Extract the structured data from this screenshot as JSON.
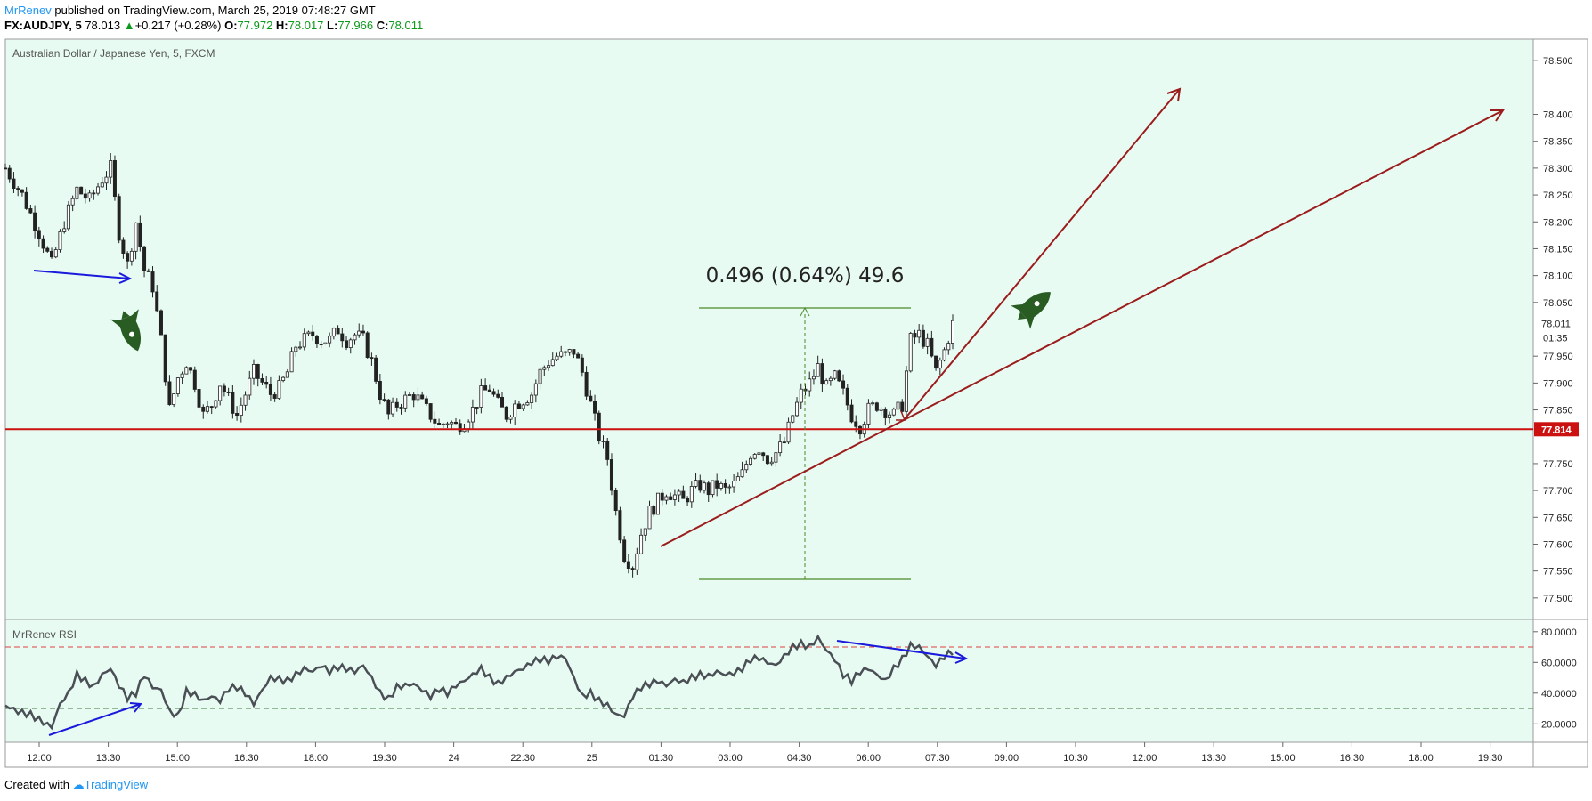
{
  "header": {
    "author": "MrRenev",
    "published_text": " published on TradingView.com, March 25, 2019 07:48:27 GMT",
    "symbol": "FX:AUDJPY, 5",
    "last": "78.013",
    "change": "+0.217 (+0.28%)",
    "open_label": "O:",
    "open": "77.972",
    "high_label": "H:",
    "high": "78.017",
    "low_label": "L:",
    "low": "77.966",
    "close_label": "C:",
    "close": "78.011"
  },
  "footer": {
    "created_with": "Created with",
    "brand": "TradingView"
  },
  "colors": {
    "chart_bg": "#e8fbf2",
    "candle": "#222222",
    "hline": "#cc1111",
    "arrow_dark_red": "#9b1c1c",
    "blue_arrow": "#1a1adc",
    "measure": "#4a8a2a",
    "rocket": "#285c22",
    "rsi_line": "#4a4f55"
  },
  "chart_data": [
    {
      "type": "candlestick",
      "title": "Australian Dollar / Japanese Yen, 5, FXCM",
      "ylim": [
        77.46,
        78.54
      ],
      "yticks": [
        "78.500",
        "78.400",
        "78.350",
        "78.300",
        "78.250",
        "78.200",
        "78.150",
        "78.100",
        "78.050",
        "77.950",
        "77.900",
        "77.850",
        "77.750",
        "77.700",
        "77.650",
        "77.600",
        "77.550",
        "77.500"
      ],
      "xticks": [
        "12:00",
        "13:30",
        "15:00",
        "16:30",
        "18:00",
        "19:30",
        "24",
        "22:30",
        "25",
        "01:30",
        "03:00",
        "04:30",
        "06:00",
        "07:30",
        "09:00",
        "10:30",
        "12:00",
        "13:30",
        "15:00",
        "16:30",
        "18:00",
        "19:30"
      ],
      "price_label": "78.011",
      "countdown": "01:35",
      "horizontal_line": {
        "value": 77.814,
        "label": "77.814"
      },
      "close_path": [
        {
          "t": 0,
          "v": 78.3
        },
        {
          "t": 8,
          "v": 78.25
        },
        {
          "t": 16,
          "v": 78.18
        },
        {
          "t": 22,
          "v": 78.12
        },
        {
          "t": 28,
          "v": 78.2
        },
        {
          "t": 34,
          "v": 78.26
        },
        {
          "t": 40,
          "v": 78.24
        },
        {
          "t": 46,
          "v": 78.28
        },
        {
          "t": 50,
          "v": 78.3
        },
        {
          "t": 54,
          "v": 78.18
        },
        {
          "t": 58,
          "v": 78.12
        },
        {
          "t": 62,
          "v": 78.2
        },
        {
          "t": 66,
          "v": 78.11
        },
        {
          "t": 70,
          "v": 78.08
        },
        {
          "t": 74,
          "v": 77.98
        },
        {
          "t": 78,
          "v": 77.85
        },
        {
          "t": 82,
          "v": 77.91
        },
        {
          "t": 86,
          "v": 77.94
        },
        {
          "t": 90,
          "v": 77.9
        },
        {
          "t": 94,
          "v": 77.84
        },
        {
          "t": 98,
          "v": 77.86
        },
        {
          "t": 102,
          "v": 77.9
        },
        {
          "t": 106,
          "v": 77.87
        },
        {
          "t": 110,
          "v": 77.84
        },
        {
          "t": 114,
          "v": 77.88
        },
        {
          "t": 118,
          "v": 77.92
        },
        {
          "t": 122,
          "v": 77.9
        },
        {
          "t": 126,
          "v": 77.88
        },
        {
          "t": 130,
          "v": 77.89
        },
        {
          "t": 134,
          "v": 77.92
        },
        {
          "t": 138,
          "v": 77.97
        },
        {
          "t": 142,
          "v": 77.98
        },
        {
          "t": 146,
          "v": 77.99
        },
        {
          "t": 150,
          "v": 77.98
        },
        {
          "t": 154,
          "v": 77.98
        },
        {
          "t": 158,
          "v": 78.0
        },
        {
          "t": 162,
          "v": 77.98
        },
        {
          "t": 166,
          "v": 77.99
        },
        {
          "t": 170,
          "v": 77.98
        },
        {
          "t": 174,
          "v": 77.94
        },
        {
          "t": 178,
          "v": 77.88
        },
        {
          "t": 182,
          "v": 77.84
        },
        {
          "t": 186,
          "v": 77.86
        },
        {
          "t": 190,
          "v": 77.87
        },
        {
          "t": 194,
          "v": 77.88
        },
        {
          "t": 198,
          "v": 77.86
        },
        {
          "t": 202,
          "v": 77.84
        },
        {
          "t": 206,
          "v": 77.82
        },
        {
          "t": 210,
          "v": 77.83
        },
        {
          "t": 214,
          "v": 77.82
        },
        {
          "t": 218,
          "v": 77.83
        },
        {
          "t": 222,
          "v": 77.85
        },
        {
          "t": 226,
          "v": 77.88
        },
        {
          "t": 230,
          "v": 77.89
        },
        {
          "t": 234,
          "v": 77.86
        },
        {
          "t": 238,
          "v": 77.84
        },
        {
          "t": 242,
          "v": 77.86
        },
        {
          "t": 246,
          "v": 77.87
        },
        {
          "t": 250,
          "v": 77.88
        },
        {
          "t": 254,
          "v": 77.92
        },
        {
          "t": 258,
          "v": 77.94
        },
        {
          "t": 262,
          "v": 77.95
        },
        {
          "t": 266,
          "v": 77.95
        },
        {
          "t": 270,
          "v": 77.96
        },
        {
          "t": 274,
          "v": 77.92
        },
        {
          "t": 278,
          "v": 77.86
        },
        {
          "t": 282,
          "v": 77.8
        },
        {
          "t": 286,
          "v": 77.76
        },
        {
          "t": 290,
          "v": 77.66
        },
        {
          "t": 294,
          "v": 77.58
        },
        {
          "t": 298,
          "v": 77.56
        },
        {
          "t": 302,
          "v": 77.62
        },
        {
          "t": 306,
          "v": 77.66
        },
        {
          "t": 310,
          "v": 77.68
        },
        {
          "t": 314,
          "v": 77.7
        },
        {
          "t": 318,
          "v": 77.69
        },
        {
          "t": 322,
          "v": 77.68
        },
        {
          "t": 326,
          "v": 77.7
        },
        {
          "t": 330,
          "v": 77.71
        },
        {
          "t": 334,
          "v": 77.7
        },
        {
          "t": 338,
          "v": 77.71
        },
        {
          "t": 342,
          "v": 77.7
        },
        {
          "t": 346,
          "v": 77.71
        },
        {
          "t": 350,
          "v": 77.73
        },
        {
          "t": 354,
          "v": 77.77
        },
        {
          "t": 358,
          "v": 77.78
        },
        {
          "t": 362,
          "v": 77.76
        },
        {
          "t": 366,
          "v": 77.77
        },
        {
          "t": 370,
          "v": 77.79
        },
        {
          "t": 374,
          "v": 77.84
        },
        {
          "t": 378,
          "v": 77.88
        },
        {
          "t": 382,
          "v": 77.9
        },
        {
          "t": 386,
          "v": 77.93
        },
        {
          "t": 390,
          "v": 77.89
        },
        {
          "t": 394,
          "v": 77.91
        },
        {
          "t": 398,
          "v": 77.88
        },
        {
          "t": 402,
          "v": 77.84
        },
        {
          "t": 406,
          "v": 77.82
        },
        {
          "t": 410,
          "v": 77.85
        },
        {
          "t": 414,
          "v": 77.86
        },
        {
          "t": 418,
          "v": 77.85
        },
        {
          "t": 422,
          "v": 77.84
        },
        {
          "t": 426,
          "v": 77.86
        },
        {
          "t": 430,
          "v": 77.98
        },
        {
          "t": 434,
          "v": 77.99
        },
        {
          "t": 438,
          "v": 77.97
        },
        {
          "t": 442,
          "v": 77.92
        },
        {
          "t": 446,
          "v": 77.96
        },
        {
          "t": 450,
          "v": 78.01
        }
      ],
      "measure_label": "0.496 (0.64%) 49.6"
    },
    {
      "type": "line",
      "title": "MrRenev RSI",
      "ylim": [
        8,
        88
      ],
      "yticks": [
        "80.0000",
        "60.0000",
        "40.0000",
        "20.0000"
      ],
      "upper_band": 70,
      "lower_band": 30,
      "values": [
        {
          "t": 0,
          "v": 32
        },
        {
          "t": 6,
          "v": 28
        },
        {
          "t": 12,
          "v": 26
        },
        {
          "t": 18,
          "v": 21
        },
        {
          "t": 22,
          "v": 18
        },
        {
          "t": 26,
          "v": 33
        },
        {
          "t": 30,
          "v": 40
        },
        {
          "t": 34,
          "v": 52
        },
        {
          "t": 38,
          "v": 48
        },
        {
          "t": 42,
          "v": 44
        },
        {
          "t": 46,
          "v": 52
        },
        {
          "t": 50,
          "v": 56
        },
        {
          "t": 54,
          "v": 45
        },
        {
          "t": 58,
          "v": 37
        },
        {
          "t": 62,
          "v": 40
        },
        {
          "t": 66,
          "v": 52
        },
        {
          "t": 70,
          "v": 44
        },
        {
          "t": 74,
          "v": 42
        },
        {
          "t": 78,
          "v": 28
        },
        {
          "t": 82,
          "v": 25
        },
        {
          "t": 86,
          "v": 41
        },
        {
          "t": 90,
          "v": 39
        },
        {
          "t": 94,
          "v": 35
        },
        {
          "t": 98,
          "v": 38
        },
        {
          "t": 102,
          "v": 35
        },
        {
          "t": 106,
          "v": 43
        },
        {
          "t": 110,
          "v": 44
        },
        {
          "t": 114,
          "v": 40
        },
        {
          "t": 118,
          "v": 33
        },
        {
          "t": 122,
          "v": 42
        },
        {
          "t": 126,
          "v": 50
        },
        {
          "t": 130,
          "v": 49
        },
        {
          "t": 134,
          "v": 48
        },
        {
          "t": 138,
          "v": 52
        },
        {
          "t": 142,
          "v": 56
        },
        {
          "t": 146,
          "v": 54
        },
        {
          "t": 150,
          "v": 58
        },
        {
          "t": 154,
          "v": 54
        },
        {
          "t": 158,
          "v": 57
        },
        {
          "t": 162,
          "v": 56
        },
        {
          "t": 166,
          "v": 54
        },
        {
          "t": 170,
          "v": 58
        },
        {
          "t": 174,
          "v": 50
        },
        {
          "t": 178,
          "v": 40
        },
        {
          "t": 182,
          "v": 36
        },
        {
          "t": 186,
          "v": 44
        },
        {
          "t": 190,
          "v": 45
        },
        {
          "t": 194,
          "v": 46
        },
        {
          "t": 198,
          "v": 42
        },
        {
          "t": 202,
          "v": 38
        },
        {
          "t": 206,
          "v": 43
        },
        {
          "t": 210,
          "v": 40
        },
        {
          "t": 214,
          "v": 45
        },
        {
          "t": 218,
          "v": 48
        },
        {
          "t": 222,
          "v": 52
        },
        {
          "t": 226,
          "v": 56
        },
        {
          "t": 230,
          "v": 50
        },
        {
          "t": 234,
          "v": 46
        },
        {
          "t": 238,
          "v": 50
        },
        {
          "t": 242,
          "v": 54
        },
        {
          "t": 246,
          "v": 56
        },
        {
          "t": 250,
          "v": 60
        },
        {
          "t": 254,
          "v": 62
        },
        {
          "t": 258,
          "v": 61
        },
        {
          "t": 262,
          "v": 64
        },
        {
          "t": 266,
          "v": 63
        },
        {
          "t": 270,
          "v": 50
        },
        {
          "t": 274,
          "v": 38
        },
        {
          "t": 278,
          "v": 40
        },
        {
          "t": 282,
          "v": 35
        },
        {
          "t": 286,
          "v": 32
        },
        {
          "t": 290,
          "v": 26
        },
        {
          "t": 294,
          "v": 25
        },
        {
          "t": 298,
          "v": 38
        },
        {
          "t": 302,
          "v": 44
        },
        {
          "t": 306,
          "v": 46
        },
        {
          "t": 310,
          "v": 48
        },
        {
          "t": 314,
          "v": 45
        },
        {
          "t": 318,
          "v": 49
        },
        {
          "t": 322,
          "v": 47
        },
        {
          "t": 326,
          "v": 50
        },
        {
          "t": 330,
          "v": 52
        },
        {
          "t": 334,
          "v": 51
        },
        {
          "t": 338,
          "v": 54
        },
        {
          "t": 342,
          "v": 52
        },
        {
          "t": 346,
          "v": 53
        },
        {
          "t": 350,
          "v": 56
        },
        {
          "t": 354,
          "v": 62
        },
        {
          "t": 358,
          "v": 63
        },
        {
          "t": 362,
          "v": 60
        },
        {
          "t": 366,
          "v": 58
        },
        {
          "t": 370,
          "v": 64
        },
        {
          "t": 374,
          "v": 70
        },
        {
          "t": 378,
          "v": 72
        },
        {
          "t": 382,
          "v": 70
        },
        {
          "t": 386,
          "v": 76
        },
        {
          "t": 390,
          "v": 68
        },
        {
          "t": 394,
          "v": 62
        },
        {
          "t": 398,
          "v": 52
        },
        {
          "t": 402,
          "v": 48
        },
        {
          "t": 406,
          "v": 54
        },
        {
          "t": 410,
          "v": 56
        },
        {
          "t": 414,
          "v": 52
        },
        {
          "t": 418,
          "v": 48
        },
        {
          "t": 422,
          "v": 56
        },
        {
          "t": 426,
          "v": 62
        },
        {
          "t": 430,
          "v": 71
        },
        {
          "t": 434,
          "v": 70
        },
        {
          "t": 438,
          "v": 64
        },
        {
          "t": 442,
          "v": 58
        },
        {
          "t": 446,
          "v": 64
        },
        {
          "t": 450,
          "v": 67
        }
      ]
    }
  ]
}
